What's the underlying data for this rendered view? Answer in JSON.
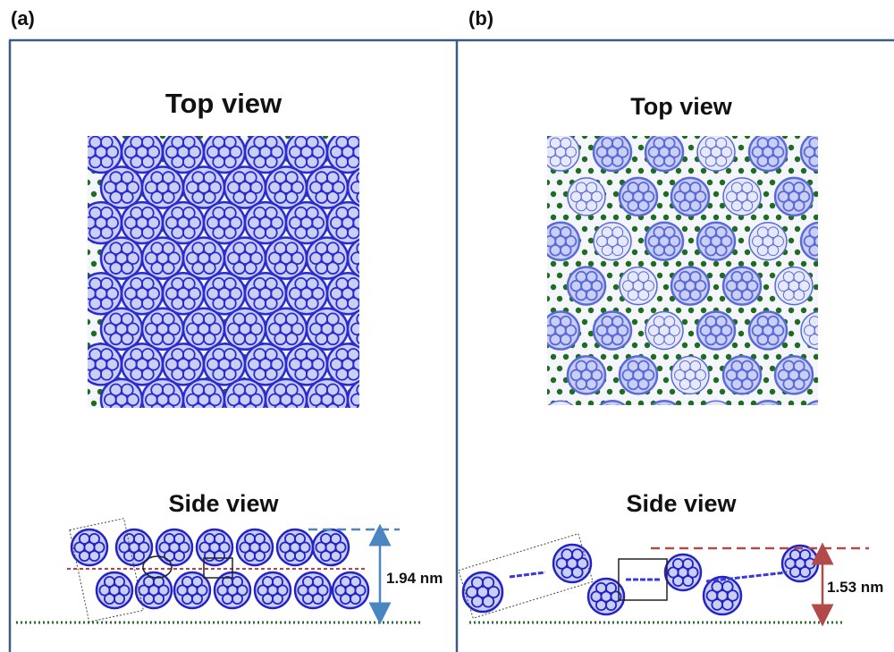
{
  "panels": [
    {
      "label": "(a)",
      "top_title": "Top view",
      "side_title": "Side view",
      "height_label": "1.94 nm"
    },
    {
      "label": "(b)",
      "top_title": "Top view",
      "side_title": "Side view",
      "height_label": "1.53 nm"
    }
  ]
}
